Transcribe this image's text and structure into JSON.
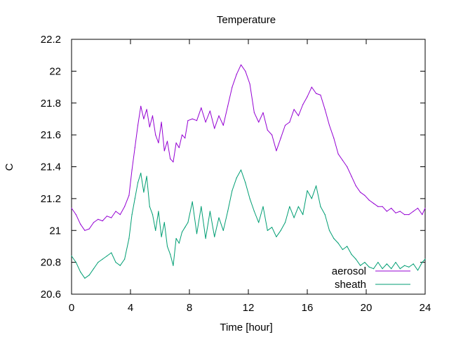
{
  "chart_data": {
    "type": "line",
    "title": "Temperature",
    "xlabel": "Time [hour]",
    "ylabel": "C",
    "xlim": [
      0,
      24
    ],
    "ylim": [
      20.6,
      22.2
    ],
    "xticks": [
      0,
      4,
      8,
      12,
      16,
      20,
      24
    ],
    "yticks": [
      20.6,
      20.8,
      21.0,
      21.2,
      21.4,
      21.6,
      21.8,
      22.0,
      22.2
    ],
    "xtick_labels": [
      "0",
      "4",
      "8",
      "12",
      "16",
      "20",
      "24"
    ],
    "ytick_labels": [
      "20.6",
      "20.8",
      "21",
      "21.2",
      "21.4",
      "21.6",
      "21.8",
      "22",
      "22.2"
    ],
    "grid": false,
    "legend_position": "bottom-right",
    "series": [
      {
        "name": "aerosol",
        "color": "#9400d3",
        "x": [
          0,
          0.3,
          0.6,
          0.9,
          1.2,
          1.5,
          1.8,
          2.1,
          2.4,
          2.7,
          3.0,
          3.3,
          3.6,
          3.9,
          4.1,
          4.3,
          4.5,
          4.7,
          4.9,
          5.1,
          5.3,
          5.5,
          5.7,
          5.9,
          6.1,
          6.3,
          6.5,
          6.7,
          6.9,
          7.1,
          7.3,
          7.5,
          7.7,
          7.9,
          8.2,
          8.5,
          8.8,
          9.1,
          9.4,
          9.7,
          10.0,
          10.3,
          10.6,
          10.9,
          11.2,
          11.5,
          11.8,
          12.1,
          12.4,
          12.7,
          13.0,
          13.3,
          13.6,
          13.9,
          14.2,
          14.5,
          14.8,
          15.1,
          15.4,
          15.7,
          16.0,
          16.3,
          16.6,
          16.9,
          17.2,
          17.5,
          17.8,
          18.1,
          18.4,
          18.7,
          19.0,
          19.3,
          19.6,
          19.9,
          20.2,
          20.5,
          20.8,
          21.1,
          21.4,
          21.7,
          22.0,
          22.3,
          22.6,
          22.9,
          23.2,
          23.5,
          23.8,
          24
        ],
        "y": [
          21.14,
          21.1,
          21.04,
          21.0,
          21.01,
          21.05,
          21.07,
          21.06,
          21.09,
          21.08,
          21.12,
          21.1,
          21.15,
          21.22,
          21.38,
          21.52,
          21.66,
          21.78,
          21.7,
          21.76,
          21.65,
          21.72,
          21.6,
          21.55,
          21.68,
          21.5,
          21.56,
          21.45,
          21.43,
          21.55,
          21.52,
          21.6,
          21.58,
          21.69,
          21.7,
          21.69,
          21.77,
          21.68,
          21.75,
          21.64,
          21.72,
          21.66,
          21.78,
          21.9,
          21.98,
          22.04,
          22.0,
          21.92,
          21.74,
          21.68,
          21.74,
          21.63,
          21.6,
          21.5,
          21.58,
          21.66,
          21.68,
          21.76,
          21.72,
          21.79,
          21.84,
          21.9,
          21.86,
          21.85,
          21.76,
          21.66,
          21.58,
          21.48,
          21.44,
          21.4,
          21.34,
          21.28,
          21.24,
          21.22,
          21.19,
          21.17,
          21.15,
          21.15,
          21.12,
          21.14,
          21.11,
          21.12,
          21.1,
          21.1,
          21.12,
          21.14,
          21.1,
          21.14
        ]
      },
      {
        "name": "sheath",
        "color": "#009e73",
        "x": [
          0,
          0.3,
          0.6,
          0.9,
          1.2,
          1.5,
          1.8,
          2.1,
          2.4,
          2.7,
          3.0,
          3.3,
          3.6,
          3.9,
          4.1,
          4.3,
          4.5,
          4.7,
          4.9,
          5.1,
          5.3,
          5.5,
          5.7,
          5.9,
          6.1,
          6.3,
          6.5,
          6.7,
          6.9,
          7.1,
          7.3,
          7.5,
          7.7,
          7.9,
          8.2,
          8.5,
          8.8,
          9.1,
          9.4,
          9.7,
          10.0,
          10.3,
          10.6,
          10.9,
          11.2,
          11.5,
          11.8,
          12.1,
          12.4,
          12.7,
          13.0,
          13.3,
          13.6,
          13.9,
          14.2,
          14.5,
          14.8,
          15.1,
          15.4,
          15.7,
          16.0,
          16.3,
          16.6,
          16.9,
          17.2,
          17.5,
          17.8,
          18.1,
          18.4,
          18.7,
          19.0,
          19.3,
          19.6,
          19.9,
          20.2,
          20.5,
          20.8,
          21.1,
          21.4,
          21.7,
          22.0,
          22.3,
          22.6,
          22.9,
          23.2,
          23.5,
          23.8,
          24
        ],
        "y": [
          20.84,
          20.8,
          20.74,
          20.7,
          20.72,
          20.76,
          20.8,
          20.82,
          20.84,
          20.86,
          20.8,
          20.78,
          20.82,
          20.95,
          21.1,
          21.2,
          21.3,
          21.36,
          21.24,
          21.34,
          21.15,
          21.1,
          21.0,
          21.12,
          20.96,
          21.05,
          20.9,
          20.85,
          20.78,
          20.95,
          20.92,
          20.99,
          21.02,
          21.05,
          21.18,
          20.98,
          21.15,
          20.95,
          21.12,
          20.96,
          21.08,
          21.0,
          21.12,
          21.25,
          21.33,
          21.38,
          21.3,
          21.2,
          21.12,
          21.05,
          21.15,
          21.0,
          21.02,
          20.96,
          21.0,
          21.05,
          21.15,
          21.08,
          21.15,
          21.1,
          21.25,
          21.2,
          21.28,
          21.15,
          21.1,
          21.0,
          20.95,
          20.92,
          20.88,
          20.9,
          20.85,
          20.82,
          20.78,
          20.8,
          20.77,
          20.76,
          20.8,
          20.76,
          20.79,
          20.76,
          20.8,
          20.76,
          20.78,
          20.77,
          20.79,
          20.75,
          20.8,
          20.82
        ]
      }
    ]
  }
}
